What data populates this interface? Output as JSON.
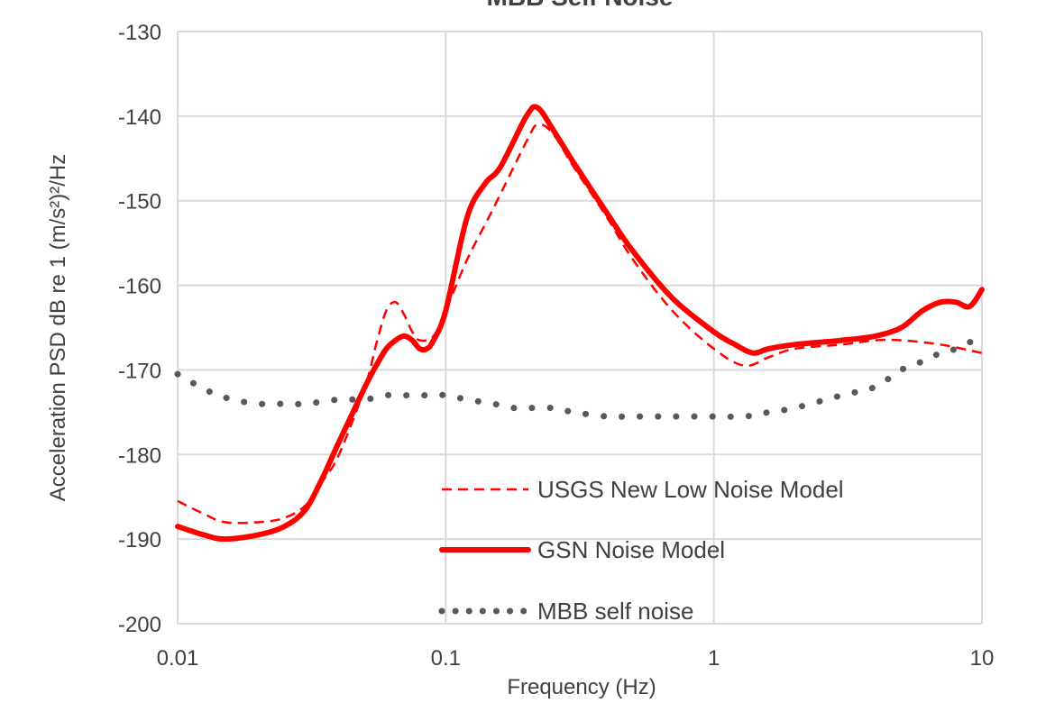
{
  "chart_data": {
    "type": "line",
    "title": "MBB Self Noise",
    "xlabel": "Frequency (Hz)",
    "ylabel": "Acceleration PSD dB re 1 (m/s²)²/Hz",
    "xscale": "log",
    "xlim": [
      0.01,
      10
    ],
    "ylim": [
      -200,
      -130
    ],
    "xticks": [
      "0.01",
      "0.1",
      "1",
      "10"
    ],
    "yticks": [
      "-130",
      "-140",
      "-150",
      "-160",
      "-170",
      "-180",
      "-190",
      "-200"
    ],
    "grid": true,
    "legend_position": "bottom-right",
    "series": [
      {
        "name": "USGS New Low Noise Model",
        "style": "dashed",
        "color": "#ff0000",
        "x": [
          0.01,
          0.0125,
          0.015,
          0.02,
          0.025,
          0.03,
          0.035,
          0.04,
          0.05,
          0.055,
          0.06,
          0.065,
          0.07,
          0.075,
          0.08,
          0.09,
          0.1,
          0.12,
          0.15,
          0.2,
          0.22,
          0.25,
          0.3,
          0.4,
          0.5,
          0.7,
          1,
          1.3,
          1.6,
          2,
          3,
          4,
          5,
          7,
          10
        ],
        "y": [
          -185.5,
          -187,
          -188,
          -188,
          -187.5,
          -186,
          -183,
          -180,
          -172,
          -167,
          -163,
          -162,
          -163.5,
          -165.5,
          -166.5,
          -166,
          -163,
          -157,
          -151,
          -143,
          -141,
          -142,
          -146,
          -152,
          -157,
          -163,
          -167.5,
          -169.5,
          -168.5,
          -167.5,
          -167,
          -166.5,
          -166.5,
          -167,
          -168
        ]
      },
      {
        "name": "GSN Noise Model",
        "style": "solid",
        "color": "#ff0000",
        "x": [
          0.01,
          0.0125,
          0.015,
          0.02,
          0.025,
          0.03,
          0.035,
          0.04,
          0.05,
          0.055,
          0.06,
          0.065,
          0.07,
          0.075,
          0.08,
          0.085,
          0.09,
          0.1,
          0.12,
          0.14,
          0.16,
          0.2,
          0.22,
          0.25,
          0.3,
          0.4,
          0.5,
          0.7,
          1,
          1.2,
          1.4,
          1.6,
          2,
          3,
          4,
          5,
          6,
          7,
          8,
          9,
          10
        ],
        "y": [
          -188.5,
          -189.5,
          -190,
          -189.5,
          -188.5,
          -186.5,
          -182.5,
          -178.5,
          -172,
          -169.5,
          -167.5,
          -166.5,
          -166,
          -166.5,
          -167.5,
          -167.5,
          -166.5,
          -163,
          -152,
          -148,
          -146,
          -140,
          -139,
          -141.5,
          -145.5,
          -151.5,
          -156,
          -161.5,
          -165.5,
          -167,
          -168,
          -167.5,
          -167,
          -166.5,
          -166,
          -165,
          -163,
          -162,
          -162,
          -162.5,
          -160.5
        ]
      },
      {
        "name": "MBB self noise",
        "style": "dotted",
        "color": "#595959",
        "x": [
          0.01,
          0.013,
          0.016,
          0.02,
          0.025,
          0.03,
          0.04,
          0.05,
          0.06,
          0.07,
          0.08,
          0.09,
          0.1,
          0.12,
          0.15,
          0.18,
          0.2,
          0.25,
          0.3,
          0.4,
          0.5,
          0.7,
          1,
          1.3,
          1.6,
          2,
          3,
          4,
          5,
          6,
          7,
          8,
          10
        ],
        "y": [
          -170.5,
          -172.5,
          -173.5,
          -174,
          -174,
          -174,
          -173.5,
          -173.5,
          -173,
          -173,
          -173,
          -173,
          -173,
          -173.5,
          -174,
          -174.5,
          -174.5,
          -174.5,
          -175,
          -175.5,
          -175.5,
          -175.5,
          -175.5,
          -175.5,
          -175,
          -174.5,
          -173,
          -172,
          -170,
          -169,
          -168,
          -167.5,
          -166
        ]
      }
    ]
  }
}
